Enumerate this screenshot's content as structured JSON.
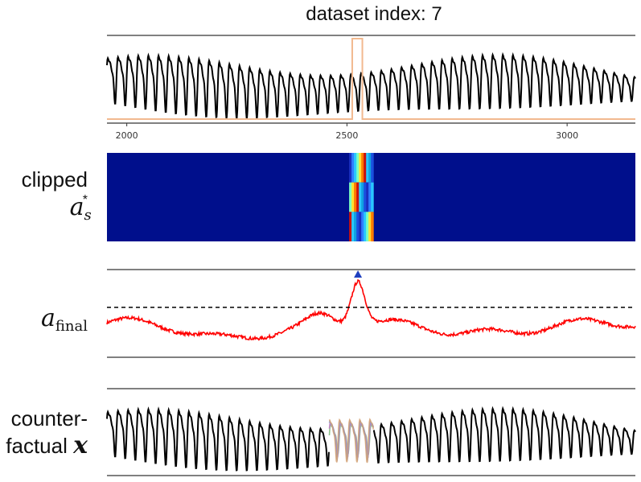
{
  "title": "dataset index: 7",
  "labels": {
    "clipped_line1": "clipped",
    "clipped_symbol": "a",
    "clipped_sub": "s",
    "clipped_sup": "*",
    "afinal_symbol": "a",
    "afinal_sub": "final",
    "cf_line1": "counter-",
    "cf_line2": "factual",
    "cf_symbol": "x"
  },
  "colors": {
    "signal": "#000000",
    "label_window": "#f2b98f",
    "heatmap_bg": "#000f8c",
    "score": "#ff0000",
    "threshold": "#000000",
    "marker": "#1f3fbf",
    "counterfactual_mix": [
      "#7ab87a",
      "#c77ac7",
      "#8899cc",
      "#d4a070"
    ]
  },
  "chart_data": [
    {
      "type": "line",
      "name": "signal",
      "xlim": [
        1955,
        3155
      ],
      "xticks": [
        2000,
        2500,
        3000
      ],
      "label_window": [
        2512,
        2535
      ],
      "period": 23
    },
    {
      "type": "heatmap",
      "name": "clipped a_s*",
      "rows": 3,
      "xlim": [
        1955,
        3155
      ],
      "active_x": [
        2505,
        2560
      ]
    },
    {
      "type": "line",
      "name": "a_final",
      "xlim": [
        1955,
        3155
      ],
      "threshold": 0.58,
      "ylim": [
        0,
        1
      ],
      "peak_x": 2525
    },
    {
      "type": "line",
      "name": "counterfactual x",
      "xlim": [
        1955,
        3155
      ],
      "replaced_window": [
        2460,
        2560
      ]
    }
  ]
}
